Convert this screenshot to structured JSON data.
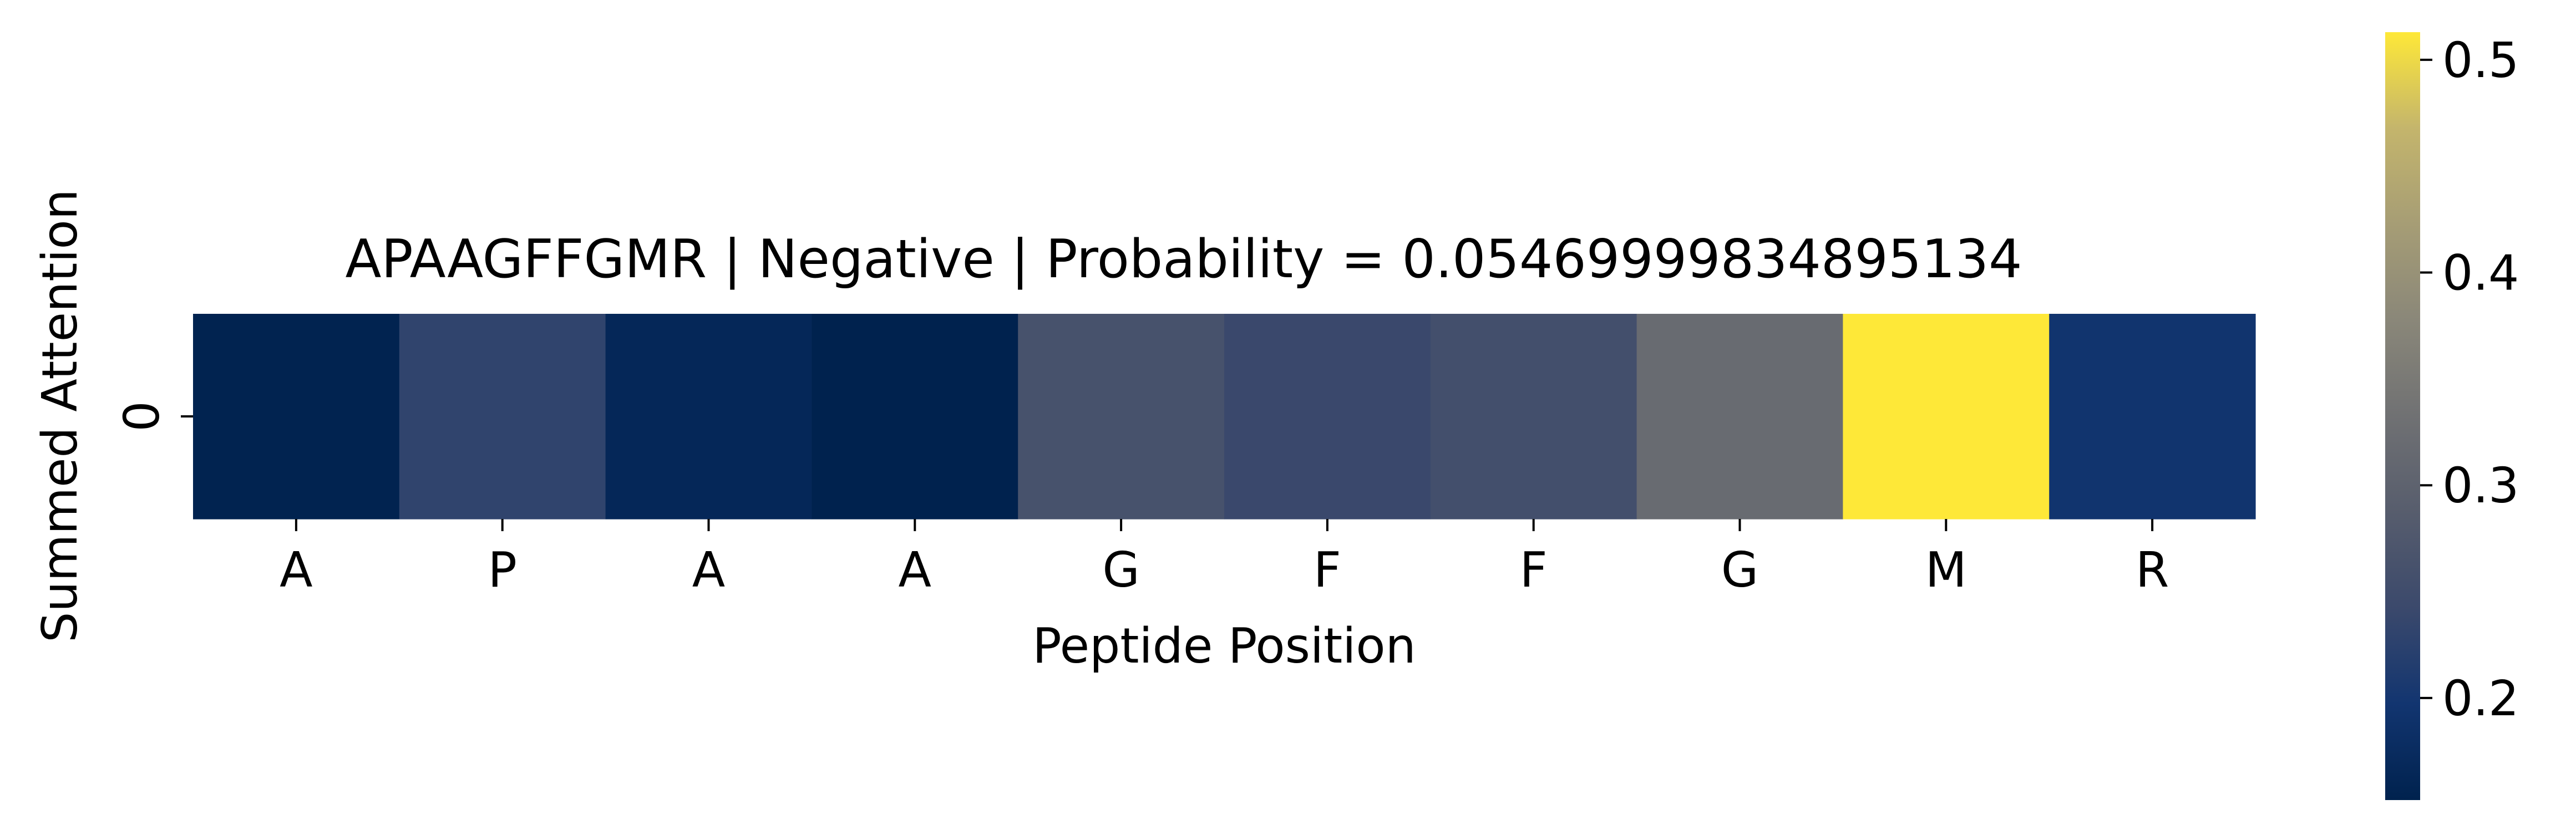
{
  "chart_data": {
    "type": "heatmap",
    "title": "APAAGFFGMR | Negative | Probability = 0.05469999834895134",
    "xlabel": "Peptide Position",
    "ylabel": "Summed Attention",
    "x_categories": [
      "A",
      "P",
      "A",
      "A",
      "G",
      "F",
      "F",
      "G",
      "M",
      "R"
    ],
    "y_categories": [
      "0"
    ],
    "values": [
      [
        0.155,
        0.23,
        0.165,
        0.152,
        0.262,
        0.241,
        0.255,
        0.318,
        0.513,
        0.195
      ]
    ],
    "colormap": "cividis",
    "colorbar": {
      "range": [
        0.152,
        0.513
      ],
      "ticks": [
        0.2,
        0.3,
        0.4,
        0.5
      ],
      "tick_labels": [
        "0.2",
        "0.3",
        "0.4",
        "0.5"
      ]
    },
    "grid": false
  }
}
